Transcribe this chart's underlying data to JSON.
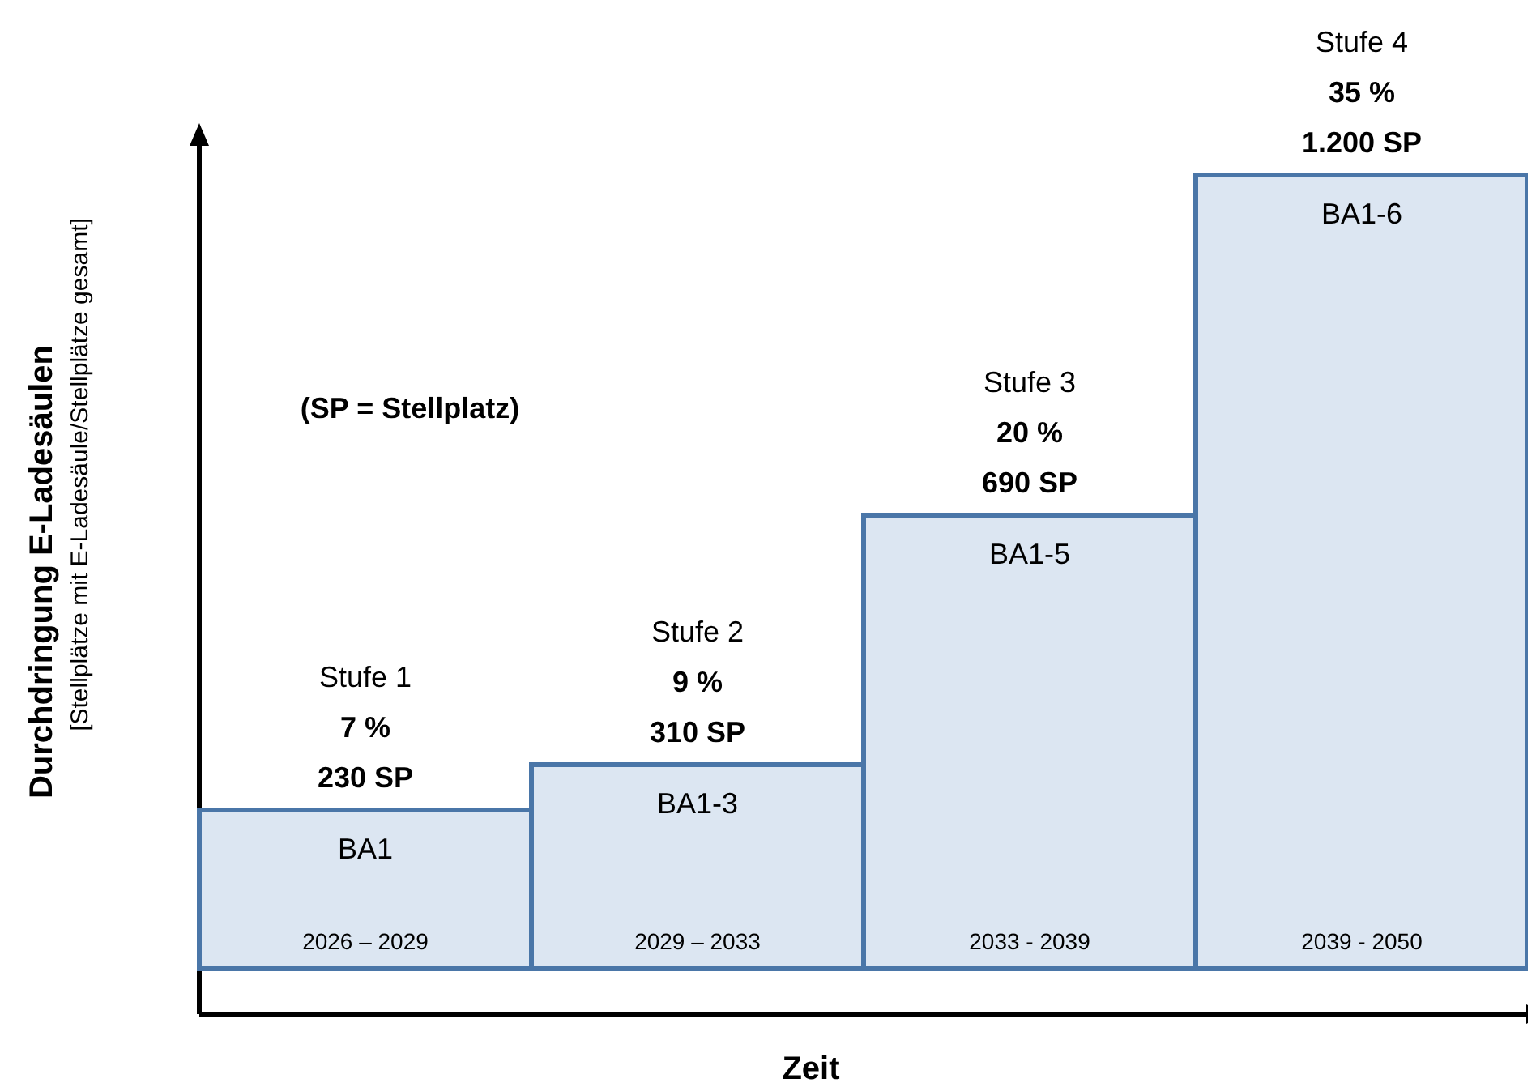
{
  "chart_data": {
    "type": "bar",
    "categories": [
      "2026 – 2029",
      "2029 – 2033",
      "2033 - 2039",
      "2039 - 2050"
    ],
    "values": [
      7,
      9,
      20,
      35
    ],
    "value_labels": [
      "7 %",
      "9 %",
      "20 %",
      "35 %"
    ],
    "color": "#dce6f2",
    "xlabel": "Zeit",
    "ylabel": "Durchdringung E-Ladesäulen",
    "annotations": [
      "[Stellplätze mit E-Ladesäule/Stellplätze gesamt]",
      "(SP = Stellplatz)",
      "Stufe 1",
      "230 SP",
      "BA1",
      "Stufe 2",
      "310 SP",
      "BA1-3",
      "Stufe 3",
      "690 SP",
      "BA1-5",
      "Stufe 4",
      "1.200 SP",
      "BA1-6"
    ],
    "tick_labels": "x"
  }
}
